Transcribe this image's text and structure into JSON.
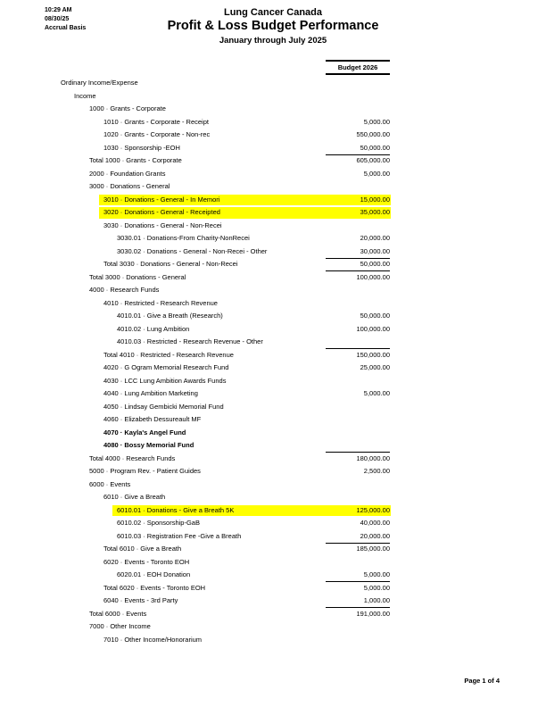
{
  "header": {
    "time": "10:29 AM",
    "date": "08/30/25",
    "basis": "Accrual Basis",
    "company": "Lung Cancer Canada",
    "report_title": "Profit & Loss Budget Performance",
    "period": "January through July 2025"
  },
  "table": {
    "column_header": "Budget 2026",
    "highlight_color": "#ffff00",
    "text_color": "#000000",
    "indents": [
      68,
      83,
      100,
      116,
      131
    ],
    "rows": [
      {
        "label": "Ordinary Income/Expense",
        "value": "",
        "level": 0
      },
      {
        "label": "Income",
        "value": "",
        "level": 1
      },
      {
        "label": "1000 · Grants - Corporate",
        "value": "",
        "level": 2
      },
      {
        "label": "1010 · Grants - Corporate - Receipt",
        "value": "5,000.00",
        "level": 3
      },
      {
        "label": "1020 · Grants - Corporate - Non-rec",
        "value": "550,000.00",
        "level": 3
      },
      {
        "label": "1030 · Sponsorship -EOH",
        "value": "50,000.00",
        "level": 3,
        "rule_below": true
      },
      {
        "label": "Total 1000 · Grants - Corporate",
        "value": "605,000.00",
        "level": 2
      },
      {
        "label": "2000 · Foundation Grants",
        "value": "5,000.00",
        "level": 2
      },
      {
        "label": "3000 · Donations - General",
        "value": "",
        "level": 2
      },
      {
        "label": "3010 · Donations - General - In Memori",
        "value": "15,000.00",
        "level": 3,
        "highlight": true
      },
      {
        "label": "3020 · Donations - General - Receipted",
        "value": "35,000.00",
        "level": 3,
        "highlight": true
      },
      {
        "label": "3030 · Donations - General - Non-Recei",
        "value": "",
        "level": 3
      },
      {
        "label": "3030.01 · Donations-From Charity-NonRecei",
        "value": "20,000.00",
        "level": 4
      },
      {
        "label": "3030.02 · Donations - General - Non-Recei - Other",
        "value": "30,000.00",
        "level": 4,
        "rule_below": true
      },
      {
        "label": "Total 3030 · Donations - General - Non-Recei",
        "value": "50,000.00",
        "level": 3,
        "rule_below": true
      },
      {
        "label": "Total 3000 · Donations - General",
        "value": "100,000.00",
        "level": 2
      },
      {
        "label": "4000 · Research Funds",
        "value": "",
        "level": 2
      },
      {
        "label": "4010 · Restricted - Research Revenue",
        "value": "",
        "level": 3
      },
      {
        "label": "4010.01 · Give a Breath (Research)",
        "value": "50,000.00",
        "level": 4
      },
      {
        "label": "4010.02 · Lung Ambition",
        "value": "100,000.00",
        "level": 4
      },
      {
        "label": "4010.03 · Restricted - Research Revenue - Other",
        "value": "",
        "level": 4,
        "rule_below": true
      },
      {
        "label": "Total 4010 · Restricted - Research Revenue",
        "value": "150,000.00",
        "level": 3
      },
      {
        "label": "4020 · G Ogram Memorial Research Fund",
        "value": "25,000.00",
        "level": 3
      },
      {
        "label": "4030 · LCC Lung Ambition Awards Funds",
        "value": "",
        "level": 3
      },
      {
        "label": "4040 · Lung Ambition Marketing",
        "value": "5,000.00",
        "level": 3
      },
      {
        "label": "4050 · Lindsay Gembicki Memorial Fund",
        "value": "",
        "level": 3
      },
      {
        "label": "4060 · Elizabeth Dessureault MF",
        "value": "",
        "level": 3
      },
      {
        "label": "4070 · Kayla's Angel Fund",
        "value": "",
        "level": 3,
        "bold": true
      },
      {
        "label": "4080 · Bossy Memorial Fund",
        "value": "",
        "level": 3,
        "bold": true,
        "rule_below": true
      },
      {
        "label": "Total 4000 · Research Funds",
        "value": "180,000.00",
        "level": 2
      },
      {
        "label": "5000 · Program Rev. - Patient Guides",
        "value": "2,500.00",
        "level": 2
      },
      {
        "label": "6000 · Events",
        "value": "",
        "level": 2
      },
      {
        "label": "6010 · Give a Breath",
        "value": "",
        "level": 3
      },
      {
        "label": "6010.01 · Donations - Give a Breath 5K",
        "value": "125,000.00",
        "level": 4,
        "highlight": true
      },
      {
        "label": "6010.02 · Sponsorship-GaB",
        "value": "40,000.00",
        "level": 4
      },
      {
        "label": "6010.03 · Registration Fee -Give a Breath",
        "value": "20,000.00",
        "level": 4,
        "rule_below": true
      },
      {
        "label": "Total 6010 · Give a Breath",
        "value": "185,000.00",
        "level": 3
      },
      {
        "label": "6020 · Events - Toronto EOH",
        "value": "",
        "level": 3
      },
      {
        "label": "6020.01 · EOH Donation",
        "value": "5,000.00",
        "level": 4,
        "rule_below": true
      },
      {
        "label": "Total 6020 · Events - Toronto EOH",
        "value": "5,000.00",
        "level": 3
      },
      {
        "label": "6040 · Events - 3rd Party",
        "value": "1,000.00",
        "level": 3,
        "rule_below": true
      },
      {
        "label": "Total 6000 · Events",
        "value": "191,000.00",
        "level": 2
      },
      {
        "label": "7000 · Other Income",
        "value": "",
        "level": 2
      },
      {
        "label": "7010 · Other Income/Honorarium",
        "value": "",
        "level": 3
      }
    ]
  },
  "footer": {
    "page_label": "Page 1 of 4"
  }
}
